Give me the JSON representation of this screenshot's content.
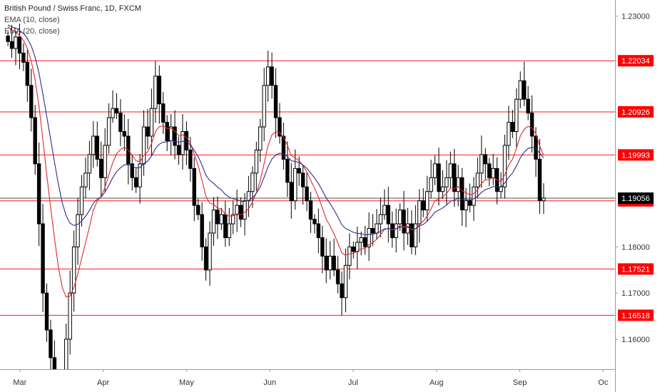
{
  "legend": {
    "symbol": "British Pound / Swiss Franc, 1D, FXCM",
    "ema1": "EMA (10, close)",
    "ema2": "EMA (20, close)"
  },
  "colors": {
    "candle_up": "#ffffff",
    "candle_down": "#000000",
    "candle_outline": "#000000",
    "level_line": "#ff1a1a",
    "level_label_bg": "#ff0000",
    "ema_fast": "#e0282e",
    "ema_slow": "#2b2d8c",
    "price_label_bg": "#000000",
    "axis_text": "#333333",
    "axis_line": "#9a9a9a"
  },
  "chart_data": {
    "type": "candlestick",
    "y_ticks": [
      "1.23000",
      "1.18000",
      "1.17000",
      "1.16000"
    ],
    "ylim": [
      1.1535,
      1.2335
    ],
    "x_tick_labels": [
      "Mar",
      "Apr",
      "May",
      "Jun",
      "Jul",
      "Aug",
      "Sep",
      "Oc"
    ],
    "x_tick_days": [
      0,
      21,
      42,
      63,
      84,
      105,
      126,
      147
    ],
    "xlim_days": [
      -5,
      150
    ],
    "current_price": "1.19056",
    "current_price_value": 1.19056,
    "levels": [
      {
        "label": "1.22034",
        "value": 1.22034
      },
      {
        "label": "1.20926",
        "value": 1.20926
      },
      {
        "label": "1.19993",
        "value": 1.19993
      },
      {
        "label": "1.18998",
        "value": 1.18998
      },
      {
        "label": "1.17521",
        "value": 1.17521
      },
      {
        "label": "1.16518",
        "value": 1.16518
      }
    ],
    "closes": [
      1.2245,
      1.223,
      1.2255,
      1.222,
      1.22,
      1.215,
      1.208,
      1.198,
      1.185,
      1.17,
      1.162,
      1.156,
      1.152,
      1.148,
      1.151,
      1.16,
      1.17,
      1.18,
      1.187,
      1.193,
      1.196,
      1.2,
      1.204,
      1.199,
      1.195,
      1.202,
      1.208,
      1.21,
      1.209,
      1.205,
      1.204,
      1.198,
      1.195,
      1.193,
      1.198,
      1.206,
      1.204,
      1.21,
      1.217,
      1.211,
      1.207,
      1.203,
      1.206,
      1.202,
      1.2,
      1.205,
      1.201,
      1.197,
      1.189,
      1.187,
      1.18,
      1.175,
      1.183,
      1.188,
      1.185,
      1.187,
      1.182,
      1.185,
      1.187,
      1.189,
      1.186,
      1.19,
      1.192,
      1.196,
      1.201,
      1.206,
      1.215,
      1.219,
      1.215,
      1.208,
      1.204,
      1.199,
      1.194,
      1.19,
      1.197,
      1.196,
      1.193,
      1.19,
      1.186,
      1.185,
      1.182,
      1.178,
      1.175,
      1.178,
      1.175,
      1.172,
      1.169,
      1.176,
      1.18,
      1.179,
      1.181,
      1.182,
      1.18,
      1.184,
      1.183,
      1.185,
      1.187,
      1.189,
      1.185,
      1.182,
      1.185,
      1.188,
      1.183,
      1.185,
      1.18,
      1.185,
      1.19,
      1.188,
      1.192,
      1.195,
      1.198,
      1.192,
      1.193,
      1.195,
      1.198,
      1.192,
      1.195,
      1.188,
      1.19,
      1.189,
      1.193,
      1.196,
      1.2,
      1.198,
      1.195,
      1.197,
      1.192,
      1.193,
      1.202,
      1.207,
      1.205,
      1.212,
      1.216,
      1.212,
      1.209,
      1.204,
      1.199,
      1.19,
      1.1906
    ]
  }
}
